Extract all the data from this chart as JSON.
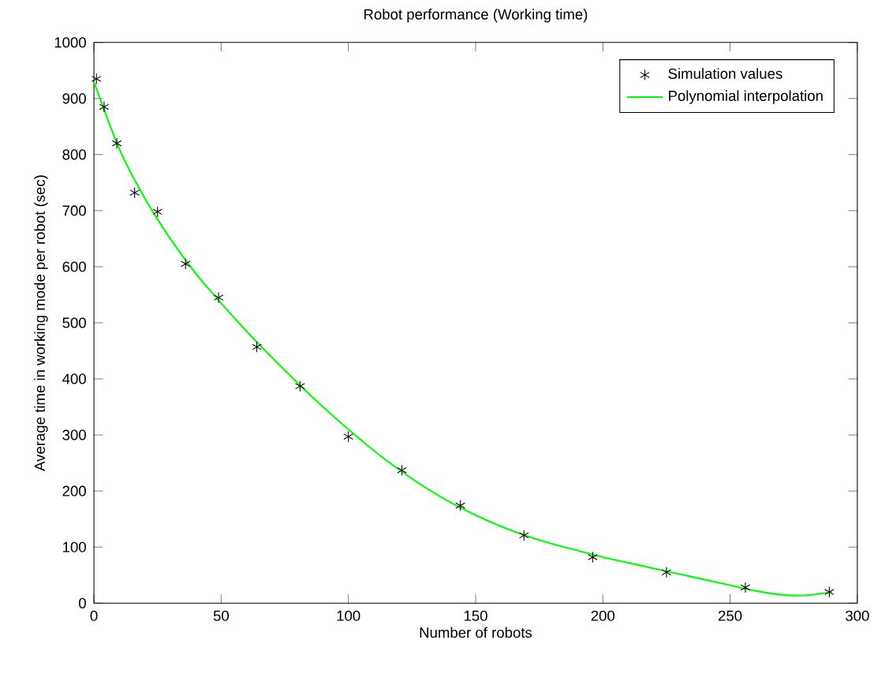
{
  "chart_data": {
    "type": "scatter",
    "title": "Robot performance (Working time)",
    "xlabel": "Number of robots",
    "ylabel": "Average time in working mode per robot (sec)",
    "xlim": [
      0,
      300
    ],
    "ylim": [
      0,
      1000
    ],
    "xticks": [
      0,
      50,
      100,
      150,
      200,
      250,
      300
    ],
    "yticks": [
      0,
      100,
      200,
      300,
      400,
      500,
      600,
      700,
      800,
      900,
      1000
    ],
    "grid": false,
    "legend": "top right",
    "series": [
      {
        "name": "Simulation values",
        "marker": "cross",
        "color": "#000000",
        "x": [
          1,
          4,
          9,
          16,
          25,
          36,
          49,
          64,
          81,
          100,
          121,
          144,
          169,
          196,
          225,
          256,
          289
        ],
        "values": [
          935,
          885,
          820,
          732,
          698,
          605,
          545,
          457,
          387,
          297,
          237,
          174,
          121,
          82,
          55,
          28,
          20
        ]
      },
      {
        "name": "Polynomial interpolation",
        "type": "line",
        "marker": "none",
        "line_style": "solid",
        "color": "#00ff00",
        "x": [
          0,
          10,
          20,
          30,
          40,
          50,
          60,
          70,
          80,
          90,
          100,
          110,
          120,
          130,
          140,
          150,
          160,
          170,
          180,
          190,
          200,
          210,
          220,
          230,
          240,
          250,
          260,
          270,
          280,
          290
        ],
        "values": [
          930,
          810,
          722,
          650,
          588,
          535,
          485,
          438,
          393,
          350,
          310,
          272,
          238,
          207,
          180,
          157,
          137,
          120,
          106,
          94,
          82,
          72,
          62,
          52,
          42,
          32,
          22,
          15,
          14,
          20
        ]
      }
    ]
  }
}
